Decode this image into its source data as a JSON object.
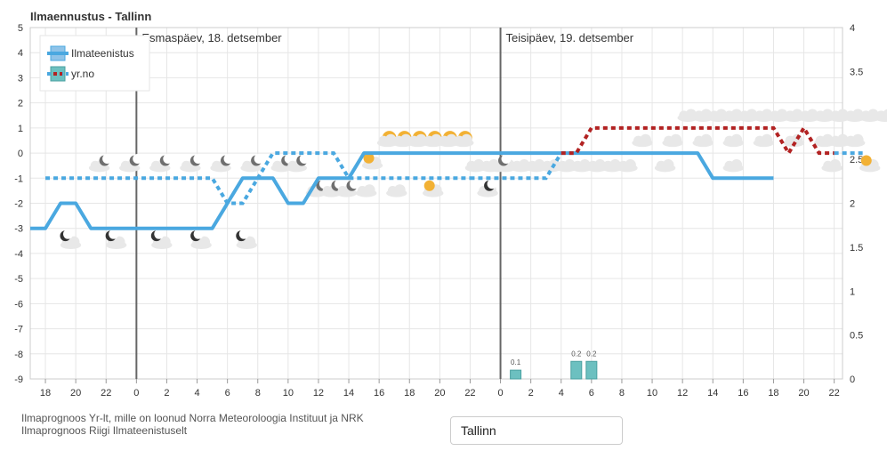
{
  "title": "Ilmaennustus - Tallinn",
  "days": [
    {
      "label": "Esmaspäev, 18. detsember",
      "hour": 0
    },
    {
      "label": "Teisipäev, 19. detsember",
      "hour": 24
    }
  ],
  "footer": {
    "line1": "Ilmaprognoos Yr-lt, mille on loonud Norra Meteoroloogia Instituut ja NRK",
    "line2": "Ilmaprognoos Riigi Ilmateenistuselt"
  },
  "city_input": {
    "value": "Tallinn"
  },
  "chart_data": {
    "type": "line",
    "title": "Ilmaennustus - Tallinn",
    "x_ticks": [
      "18",
      "20",
      "22",
      "0",
      "2",
      "4",
      "6",
      "8",
      "10",
      "12",
      "14",
      "16",
      "18",
      "20",
      "22",
      "0",
      "2",
      "4",
      "6",
      "8",
      "10",
      "12",
      "14",
      "16",
      "18",
      "20",
      "22"
    ],
    "xlim": [
      17,
      47
    ],
    "ylim": [
      -9,
      5
    ],
    "y_ticks": [
      "5",
      "4",
      "3",
      "2",
      "1",
      "0",
      "-1",
      "-2",
      "-3",
      "-4",
      "-5",
      "-6",
      "-7",
      "-8",
      "-9"
    ],
    "y2lim": [
      0,
      4
    ],
    "y2_ticks": [
      "4",
      "3.5",
      "3",
      "2.5",
      "2",
      "1.5",
      "1",
      "0.5",
      "0"
    ],
    "grid": true,
    "legend": "top-left",
    "series": [
      {
        "name": "Ilmateenistus",
        "color": "#4aa8e0",
        "style": "solid",
        "x": [
          17,
          18,
          19,
          20,
          21,
          22,
          23,
          24,
          25,
          26,
          27,
          28,
          29,
          30,
          31,
          32,
          33,
          34,
          35,
          36,
          37,
          38,
          39,
          40,
          41,
          42,
          43,
          44,
          45,
          46
        ],
        "y": [
          -3,
          -3,
          -2,
          -2,
          -3,
          -3,
          -3,
          -3,
          -3,
          -3,
          -3,
          -3,
          -3,
          -2,
          -1,
          -1,
          -1,
          -2,
          -2,
          -1,
          -1,
          -1,
          0,
          0,
          0,
          0,
          0,
          0,
          0,
          0
        ]
      },
      {
        "name": "yr.no",
        "color": "#4aa8e0",
        "color_segments": "#b22222",
        "style": "dotted",
        "x": [
          18,
          19,
          20,
          21,
          22,
          23,
          24,
          25,
          26,
          27,
          28,
          29,
          30,
          31,
          32,
          33,
          34,
          35,
          36,
          37,
          38,
          39,
          40,
          41,
          42,
          43,
          44,
          45,
          46
        ],
        "y": [
          -1,
          -1,
          -1,
          -1,
          -1,
          -1,
          -1,
          -1,
          -1,
          -1,
          -1,
          -1,
          -2,
          -2,
          -1,
          0,
          0,
          0,
          0,
          0,
          -1,
          -1,
          -1,
          -1,
          -1,
          -1,
          -1,
          -1,
          -1
        ]
      }
    ],
    "series_day2": {
      "ilmateenistus": {
        "x": [
          46,
          47,
          48,
          49,
          50,
          51,
          52,
          53,
          54,
          55,
          56,
          57,
          58,
          59,
          60,
          61,
          62,
          63,
          64,
          65,
          66
        ],
        "y": [
          0,
          0,
          0,
          0,
          0,
          0,
          0,
          0,
          0,
          0,
          0,
          0,
          0,
          0,
          0,
          0,
          -1,
          -1,
          -1,
          -1,
          -1
        ]
      },
      "yrno_blue": {
        "x": [
          46,
          47,
          48,
          49,
          50,
          51,
          52
        ],
        "y": [
          -1,
          -1,
          -1,
          -1,
          -1,
          -1,
          0
        ]
      },
      "yrno_red": {
        "x": [
          52,
          53,
          54,
          55,
          56,
          57,
          58,
          59,
          60,
          61,
          62,
          63,
          64,
          65,
          66,
          67,
          68,
          69,
          70
        ],
        "y": [
          0,
          0,
          1,
          1,
          1,
          1,
          1,
          1,
          1,
          1,
          1,
          1,
          1,
          1,
          1,
          0,
          1,
          0,
          0
        ]
      },
      "yrno_blue_end": {
        "x": [
          70,
          71,
          72
        ],
        "y": [
          0,
          0,
          0
        ]
      }
    },
    "precipitation": {
      "name": "yr.no",
      "color": "#6cc0c0",
      "axis": "right",
      "x": [
        49,
        53,
        54
      ],
      "values": [
        0.1,
        0.2,
        0.2
      ],
      "labels": [
        "0.1",
        "0.2",
        "0.2"
      ]
    }
  }
}
